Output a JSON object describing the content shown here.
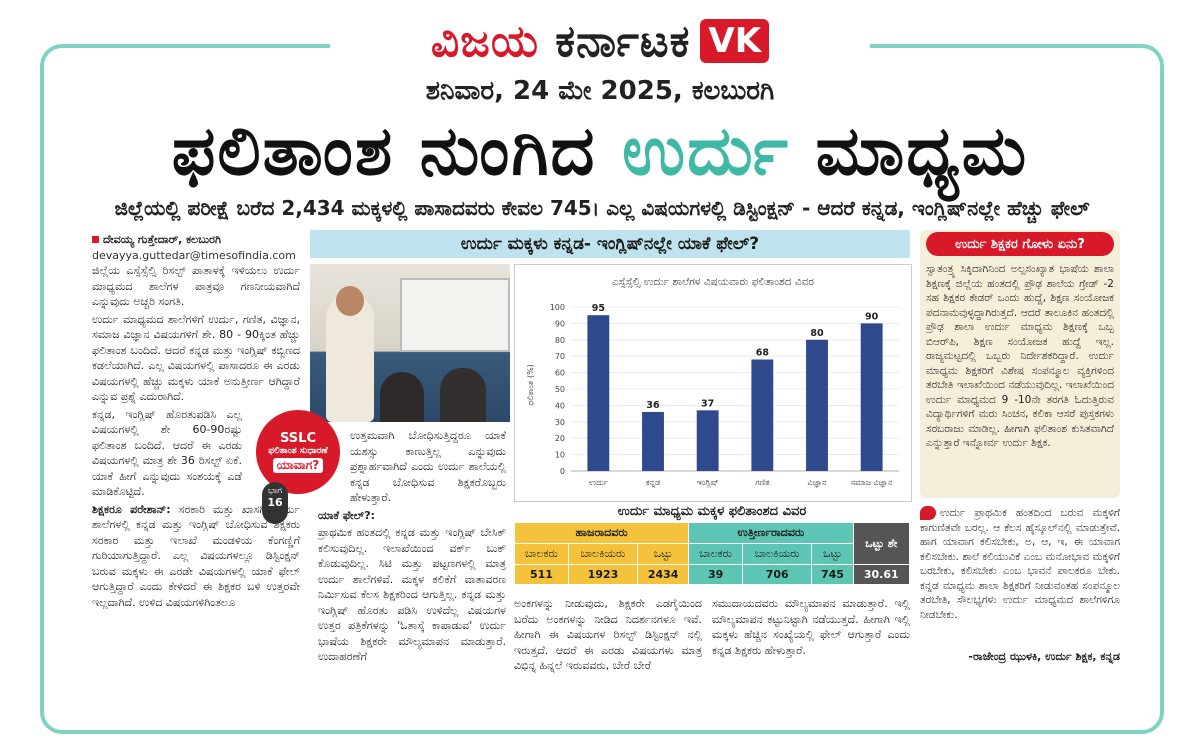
{
  "masthead": {
    "name_red": "ವಿಜಯ",
    "name_dark": "ಕರ್ನಾಟಕ",
    "logo_badge": "VK"
  },
  "dateline": "ಶನಿವಾರ, 24 ಮೇ 2025, ಕಲಬುರಗಿ",
  "headline": {
    "part1": "ಫಲಿತಾಂಶ ನುಂಗಿದ",
    "part2": "ಉರ್ದು",
    "part3": "ಮಾಧ್ಯಮ"
  },
  "deck": "ಜಿಲ್ಲೆಯಲ್ಲಿ ಪರೀಕ್ಷೆ ಬರೆದ 2,434 ಮಕ್ಕಳಲ್ಲಿ ಪಾಸಾದವರು ಕೇವಲ 745। ಎಲ್ಲ ವಿಷಯಗಳಲ್ಲಿ ಡಿಸ್ಟಿಂಕ್ಷನ್ - ಆದರೆ ಕನ್ನಡ, ಇಂಗ್ಲಿಷ್‌ನಲ್ಲೇ ಹೆಚ್ಚು ಫೇಲ್",
  "article": {
    "byline": "ದೇವಯ್ಯ ಗುತ್ತೇದಾರ್, ಕಲಬುರಗಿ",
    "email": "devayya.guttedar@timesofindia.com",
    "p1": "ಜಿಲ್ಲೆಯ ಎಸ್ಸೆಸ್ಸೆಲ್ಸಿ ರಿಸಲ್ಟ್ ಪಾತಾಳಕ್ಕೆ ಇಳಿಯಲು ಉರ್ದು ಮಾಧ್ಯಮದ ಶಾಲೆಗಳ ಪಾತ್ರವೂ ಗಣನೀಯವಾಗಿದೆ ಎನ್ನುವುದು ಅಚ್ಚರಿ ಸಂಗತಿ.",
    "p2": "ಉರ್ದು ಮಾಧ್ಯಮದ ಶಾಲೆಗಳಿಗೆ ಉರ್ದು, ಗಣಿತ, ವಿಜ್ಞಾನ, ಸಮಾಜ ವಿಜ್ಞಾನ ವಿಷಯಗಳಿಗೆ ಶೇ. 80 - 90ಕ್ಕಿಂತ ಹೆಚ್ಚು ಫಲಿತಾಂಶ ಬಂದಿದೆ. ಆದರೆ ಕನ್ನಡ ಮತ್ತು ಇಂಗ್ಲಿಷ್ ಕಬ್ಬಿಣದ ಕಡಲೆಯಾಗಿದೆ. ಎಲ್ಲ ವಿಷಯಗಳಲ್ಲಿ ಪಾಸಾದರೂ ಈ ಎರಡು ವಿಷಯಗಳಲ್ಲಿ ಹೆಚ್ಚು ಮಕ್ಕಳು ಯಾಕೆ ಅನುತ್ತೀರ್ಣ ಆಗಿದ್ದಾರೆ ಎನ್ನುವ ಪ್ರಶ್ನೆ ಎದುರಾಗಿದೆ.",
    "p3": "ಕನ್ನಡ, ಇಂಗ್ಲಿಷ್ ಹೊರತುಪಡಿಸಿ ಎಲ್ಲ ವಿಷಯಗಳಲ್ಲಿ ಶೇ 60-90ರಷ್ಟು ಫಲಿತಾಂಶ ಬಂದಿದೆ. ಆದರೆ ಈ ಎರಡು ವಿಷಯಗಳಲ್ಲಿ ಮಾತ್ರ ಶೇ 36 ರಿಸಲ್ಟ್ ಏಕೆ. ಯಾಕೆ ಹೀಗೆ ಎನ್ನುವುದು ಸಂಶಯಕ್ಕೆ ಎಡೆ ಮಾಡಿಕೊಟ್ಟಿದೆ.",
    "sub1": "ಶಿಕ್ಷಕರೂ ಪರೇಶಾನ್:",
    "p4": "ಸರಕಾರಿ ಮತ್ತು ಖಾಸಗಿ ಉರ್ದು ಶಾಲೆಗಳಲ್ಲಿ ಕನ್ನಡ ಮತ್ತು ಇಂಗ್ಲಿಷ್ ಬೋಧಿಸುವ ಶಿಕ್ಷಕರು ಸರಕಾರ ಮತ್ತು ಇಲಾಖೆ ಮಂಡಳಿಯ ಕೆಂಗಣ್ಣಿಗೆ ಗುರಿಯಾಗುತ್ತಿದ್ದಾರೆ. ಎಲ್ಲ ವಿಷಯಗಳಲ್ಲೂ ಡಿಸ್ಟಿಂಕ್ಷನ್ ಬರುವ ಮಕ್ಕಳು ಈ ಎರಡೇ ವಿಷಯಗಳಲ್ಲಿ ಯಾಕೆ ಫೇಲ್ ಆಗುತ್ತಿದ್ದಾರೆ ಎಂದು ಕೇಳಿದರೆ ಈ ಶಿಕ್ಷಕರ ಬಳಿ ಉತ್ತರವೇ ಇಲ್ಲದಾಗಿದೆ. ಉಳಿದ ವಿಷಯಗಳಿಗಿಂತಲೂ",
    "p5": "ಉತ್ತಮವಾಗಿ ಬೋಧಿಸುತ್ತಿದ್ದರೂ ಯಾಕೆ ಯಶಸ್ಸು ಕಾಣುತ್ತಿಲ್ಲ ಎನ್ನುವುದು ಪ್ರಶ್ನಾರ್ಹವಾಗಿದೆ ಎಂದು ಉರ್ದು ಶಾಲೆಯಲ್ಲಿ ಕನ್ನಡ ಬೋಧಿಸುವ ಶಿಕ್ಷಕರೊಬ್ಬರು ಹೇಳುತ್ತಾರೆ.",
    "sub2": "ಯಾಕೆ ಫೇಲ್?:",
    "p6": "ಪ್ರಾಥಮಿಕ ಹಂತದಲ್ಲಿ ಕನ್ನಡ ಮತ್ತು ಇಂಗ್ಲಿಷ್ ಬೇಸಿಕ್ ಕಲಿಸುವುದಿಲ್ಲ. ಇಲಾಖೆಯಿಂದ ವರ್ಕ್ ಬುಕ್ ಕೊಡುವುದಿಲ್ಲ. ಸಿಟಿ ಮತ್ತು ಪಟ್ಟಣಗಳಲ್ಲಿ ಮಾತ್ರ ಉರ್ದು ಶಾಲೆಗಳಿವೆ. ಮಕ್ಕಳ ಕಲಿಕೆಗೆ ವಾತಾವರಣ ನಿರ್ಮಿಸುವ ಕೆಲಸ ಶಿಕ್ಷಕರಿಂದ ಆಗುತ್ತಿಲ್ಲ. ಕನ್ನಡ ಮತ್ತು ಇಂಗ್ಲಿಷ್ ಹೊರತು ಪಡಿಸಿ ಉಳಿದೆಲ್ಲ ವಿಷಯಗಳ ಉತ್ತರ ಪತ್ರಿಕೆಗಳನ್ನು 'ಓತಾಸ್ಕೆ ಕಾಪಾಡುವ' ಉರ್ದು ಭಾಷೆಯ ಶಿಕ್ಷಕರೇ ಮೌಲ್ಯಮಾಪನ ಮಾಡುತ್ತಾರೆ. ಉದಾಹರಣೆಗೆ",
    "p7": "ಅಂಕಗಳನ್ನು ನೀಡುವುದು, ಶಿಕ್ಷಕರೇ ಎಡಗೈಯಿಂದ ಬರೆದು ಅಂಕಗಳನ್ನು ನೀಡಿದ ನಿದರ್ಶನಗಳೂ ಇವೆ. ಹೀಗಾಗಿ ಈ ವಿಷಯಗಳ ರಿಸಲ್ಟ್ ಡಿಸ್ಟಿಂಕ್ಷನ್ ನಲ್ಲಿ ಇರುತ್ತದೆ. ಆದರೆ ಈ ಎರಡು ವಿಷಯಗಳು ಮಾತ್ರ ವಿಭಿನ್ನ ಹಿನ್ನಲೆ ಇರುವವರು, ಬೇರೆ ಬೇರೆ",
    "p8": "ಸಮುದಾಯದವರು ಮೌಲ್ಯಮಾಪನ ಮಾಡುತ್ತಾರೆ. ಇಲ್ಲಿ ಮೌಲ್ಯಮಾಪನ ಕಟ್ಟುನಿಟ್ಟಾಗಿ ನಡೆಯುತ್ತದೆ. ಹೀಗಾಗಿ ಇಲ್ಲಿ ಮಕ್ಕಳು ಹೆಚ್ಚಿನ ಸಂಖ್ಯೆಯಲ್ಲಿ ಫೇಲ್ ಆಗುತ್ತಾರೆ ಎಂದು ಕನ್ನಡ ಶಿಕ್ಷಕರು ಹೇಳುತ್ತಾರೆ."
  },
  "graybar": "ಉರ್ದು ಮಕ್ಕಳು ಕನ್ನಡ- ಇಂಗ್ಲಿಷ್‌ನಲ್ಲೇ ಯಾಕೆ ಫೇಲ್?",
  "badge": {
    "l1": "SSLC",
    "l2": "ಫಲಿತಾಂಶ ಸುಧಾರಣೆ",
    "l3": "ಯಾವಾಗ?"
  },
  "bhaga": {
    "label": "ಭಾಗ",
    "num": "16"
  },
  "chart_data": {
    "type": "bar",
    "title": "ಎಸ್ಸೆಸ್ಸೆಲ್ಸಿ ಉರ್ದು ಶಾಲೆಗಳ ವಿಷಯವಾರು ಫಲಿತಾಂಶದ ವಿವರ",
    "ylabel": "ಫಲಿತಾಂಶ (%)",
    "xlabel": "",
    "categories": [
      "ಉರ್ದು",
      "ಕನ್ನಡ",
      "ಇಂಗ್ಲಿಷ್",
      "ಗಣಿತ",
      "ವಿಜ್ಞಾನ",
      "ಸಮಾಜ ವಿಜ್ಞಾನ"
    ],
    "values": [
      95,
      36,
      37,
      68,
      80,
      90
    ],
    "ylim": [
      0,
      100
    ],
    "yticks": [
      0,
      10,
      20,
      30,
      40,
      50,
      60,
      70,
      80,
      90,
      100
    ],
    "bar_color": "#2e4a8c"
  },
  "table": {
    "title": "ಉರ್ದು ಮಾಧ್ಯಮ ಮಕ್ಕಳ ಫಲಿತಾಂಶದ ವಿವರ",
    "group1": "ಹಾಜರಾದವರು",
    "group2": "ಉತ್ತೀರ್ಣರಾದವರು",
    "percent_head": "ಒಟ್ಟು ಶೇ",
    "cols": [
      "ಬಾಲಕರು",
      "ಬಾಲಕಿಯರು",
      "ಒಟ್ಟು",
      "ಬಾಲಕರು",
      "ಬಾಲಕಿಯರು",
      "ಒಟ್ಟು"
    ],
    "vals": [
      "511",
      "1923",
      "2434",
      "39",
      "706",
      "745"
    ],
    "percent": "30.61"
  },
  "sidebar": {
    "heading": "ಉರ್ದು ಶಿಕ್ಷಕರ ಗೋಳು ಏನು?",
    "text": "ಸ್ವಾತಂತ್ರ್ಯ ಸಿಕ್ಕಿದಾಗಿನಿಂದ ಅಲ್ಪಸಂಖ್ಯಾತ ಭಾಷೆಯ ಶಾಲಾ ಶಿಕ್ಷಣಕ್ಕೆ ಜಿಲ್ಲೆಯ ಹಂತದಲ್ಲಿ ಪ್ರೌಢ ಶಾಲೆಯ ಗ್ರೇಡ್ -2 ಸಹ ಶಿಕ್ಷಕರ ಕೇಡರ್ ಒಂದು ಹುದ್ದೆ, ಶಿಕ್ಷಣ ಸಂಯೋಜಕ ಪದನಾಮವುಳ್ಳದ್ದಾಗಿರುತ್ತದೆ. ಆದರೆ ತಾಲೂಕಿನ ಹಂತದಲ್ಲಿ ಪ್ರೌಢ ಶಾಲಾ ಉರ್ದು ಮಾಧ್ಯಮ ಶಿಕ್ಷಣಕ್ಕೆ ಒಬ್ಬ ಬಿಆರ್‌ಪಿ, ಶಿಕ್ಷಣ ಸಂಯೋಜಕ ಹುದ್ದೆ ಇಲ್ಲ. ರಾಜ್ಯಮಟ್ಟದಲ್ಲಿ ಒಬ್ಬರು ನಿರ್ದೇಶಕರಿದ್ದಾರೆ. ಉರ್ದು ಮಾಧ್ಯಮ ಶಿಕ್ಷಕರಿಗೆ ವಿಶೇಷ ಸಂಪನ್ಮೂಲ ವ್ಯಕ್ತಿಗಳಿಂದ ತರಬೇತಿ ಇಲಾಖೆಯಿಂದ ನಡೆಯುವುದಿಲ್ಲ. ಇಲಾಖೆಯಿಂದ ಉರ್ದು ಮಾಧ್ಯಮದ 9 -10ನೇ ತರಗತಿ ಓದುತ್ತಿರುವ ವಿದ್ಯಾರ್ಥಿಗಳಿಗೆ ಮರು ಸಿಂಚನ, ಕಲಿಕಾ ಆಸರೆ ಪುಸ್ತಕಗಳು ಸರಬರಾಜು ಮಾಡಿಲ್ಲ. ಹೀಗಾಗಿ ಫಲಿತಾಂಶ ಕುಸಿತವಾಗಿದೆ ಎನ್ನುತ್ತಾರೆ ಇನ್ನೋರ್ವ ಉರ್ದು ಶಿಕ್ಷಕ."
  },
  "quote": {
    "text": "ಉರ್ದು ಪ್ರಾಥಮಿಕ ಹಂತದಿಂದ ಬರುವ ಮಕ್ಕಳಿಗೆ ಕಾಗುಣಿತವೇ ಬರಲ್ಲ. ಆ ಕೆಲಸ ಹೈಸ್ಕೂಲ್‌ನಲ್ಲಿ ಮಾಡುತ್ತೇವೆ. ಹಾಗ ಯಾವಾಗ ಕಲಿಸಬೇಕು, ಅ, ಆ, ಇ, ಈ ಯಾವಾಗ ಕಲಿಸಬೇಕು. ಶಾಲೆ ಕಲಿಯುವಿಕೆ ಎಂಬ ಮನೋಭಾವ ಮಕ್ಕಳಿಗೆ ಬರಬೇಕು, ಕಲಿಸಬೇಕು ಎಂಬ ಭಾವನೆ ಪಾಲಕರೂ ಬೇಕು. ಕನ್ನಡ ಮಾಧ್ಯಮ ಶಾಲಾ ಶಿಕ್ಷಕರಿಗೆ ನೀಡುವಂತಹ ಸಂಪನ್ಮೂಲ ತರಬೇತಿ, ಸೌಲಭ್ಯಗಳು ಉರ್ದು ಮಾಧ್ಯಮದ ಶಾಲೆಗಳಿಗೂ ನೀಡಬೇಕು.",
    "signature": "-ರಾಜೇಂದ್ರ ಝುಳಕಿ, ಉರ್ದು ಶಿಕ್ಷಕ, ಕನ್ನಡ"
  }
}
